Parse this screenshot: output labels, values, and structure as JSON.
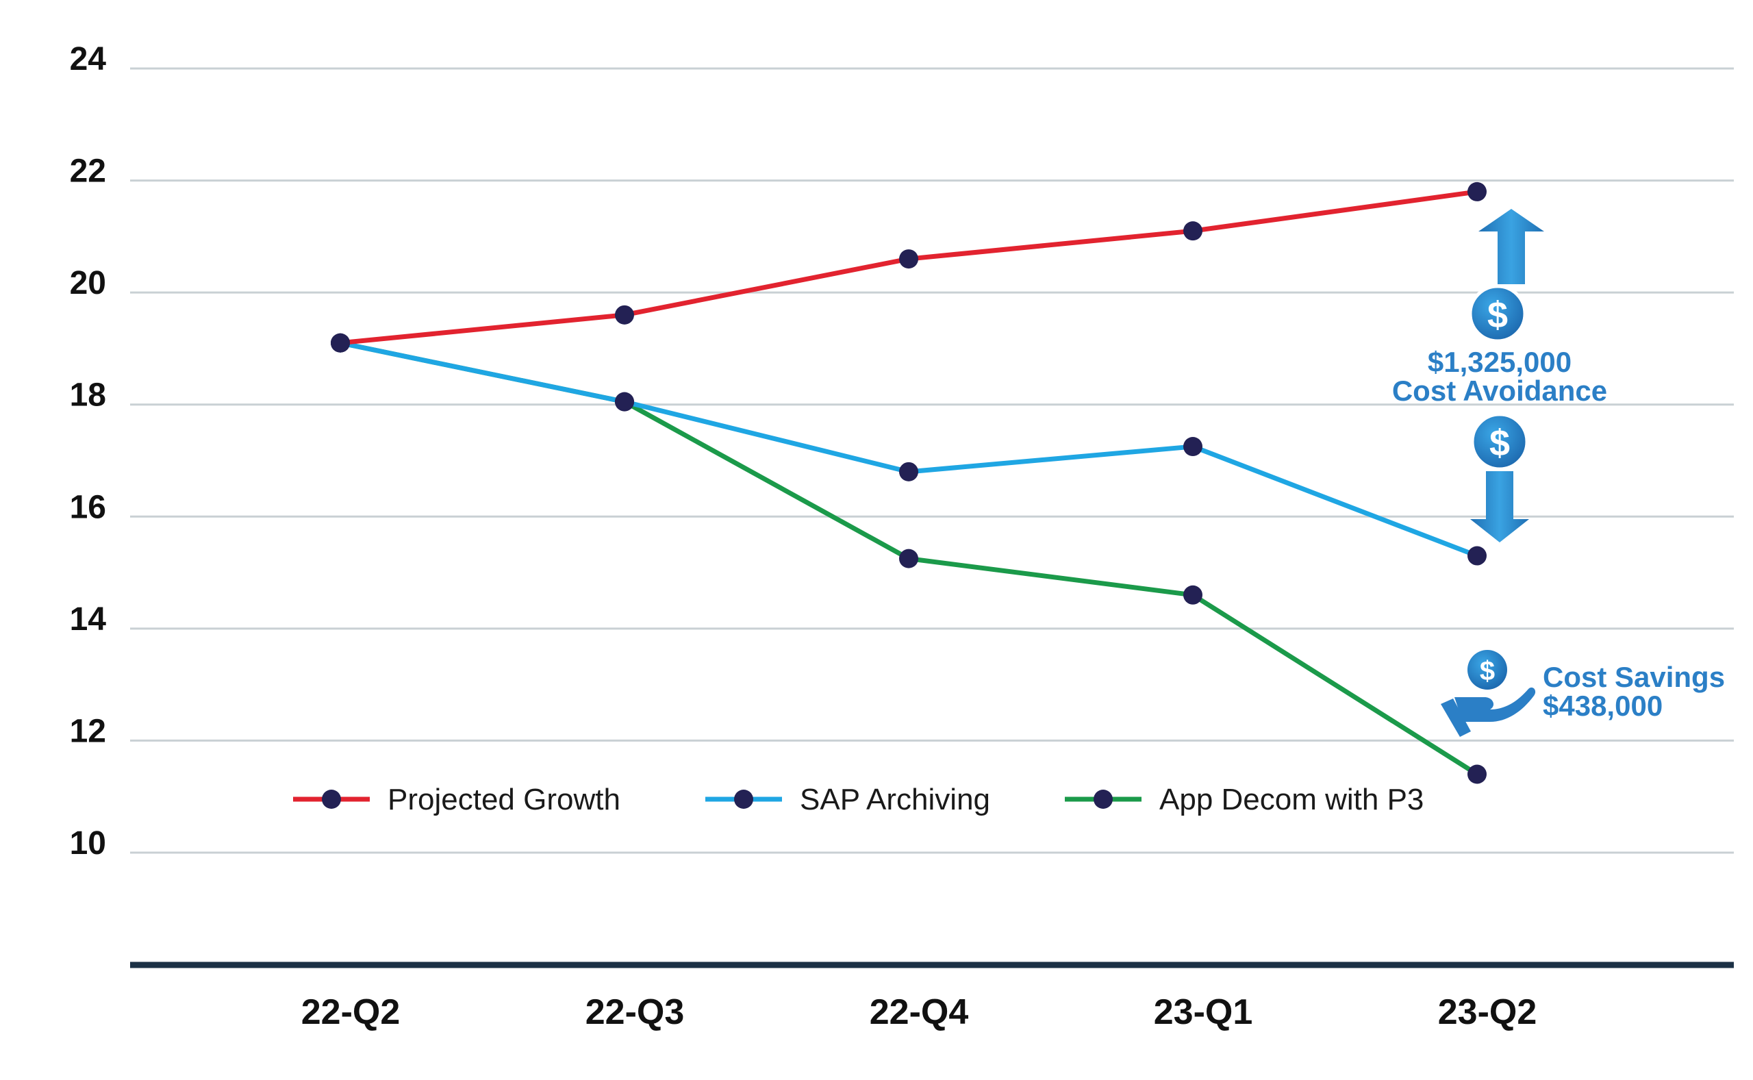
{
  "chart_data": {
    "type": "line",
    "categories": [
      "22-Q2",
      "22-Q3",
      "22-Q4",
      "23-Q1",
      "23-Q2"
    ],
    "yticks": [
      10,
      12,
      14,
      16,
      18,
      20,
      22,
      24
    ],
    "ylim": [
      8,
      24
    ],
    "grid": true,
    "legend_position": "bottom-left",
    "series": [
      {
        "name": "Projected Growth",
        "color": "#e2232f",
        "values": [
          19.1,
          19.6,
          20.6,
          21.1,
          21.8
        ]
      },
      {
        "name": "SAP Archiving",
        "color": "#1fa6e3",
        "values": [
          19.1,
          18.05,
          16.8,
          17.25,
          15.3
        ]
      },
      {
        "name": "App Decom with P3",
        "color": "#1b9a4a",
        "values": [
          19.1,
          18.05,
          15.25,
          14.6,
          11.4
        ]
      }
    ],
    "marker_color": "#232154",
    "annotations": {
      "avoidance_amount": "$1,325,000",
      "avoidance_label": "Cost Avoidance",
      "savings_label": "Cost Savings",
      "savings_amount": "$438,000",
      "accent_color": "#2b7fc6"
    }
  }
}
